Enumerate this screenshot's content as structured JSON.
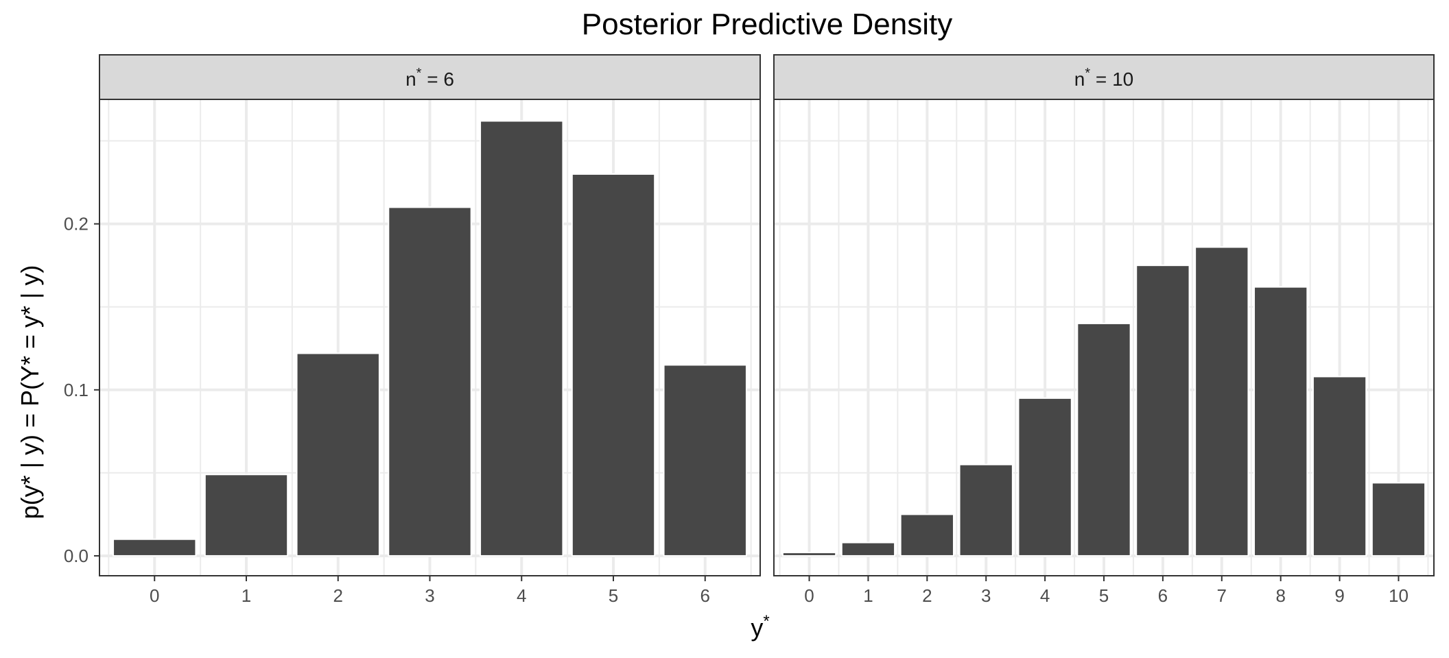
{
  "chart_data": {
    "type": "bar",
    "title": "Posterior Predictive Density",
    "xlabel": "y",
    "xlabel_sup": "*",
    "ylabel": "p(y* | y) = P(Y* = y* | y)",
    "y_ticks": [
      "0.0",
      "0.1",
      "0.2"
    ],
    "ylim": [
      -0.012,
      0.275
    ],
    "grid": true,
    "colors": {
      "bar": "#474747",
      "strip": "#d9d9d9",
      "grid": "#ebebeb",
      "border": "#333333"
    },
    "panels": [
      {
        "strip_label": "n* = 6",
        "strip_label_parts": {
          "base": "n",
          "sup": "*",
          "rest": " = 6"
        },
        "categories": [
          "0",
          "1",
          "2",
          "3",
          "4",
          "5",
          "6"
        ],
        "values": [
          0.01,
          0.049,
          0.122,
          0.21,
          0.262,
          0.23,
          0.115
        ]
      },
      {
        "strip_label": "n* = 10",
        "strip_label_parts": {
          "base": "n",
          "sup": "*",
          "rest": " = 10"
        },
        "categories": [
          "0",
          "1",
          "2",
          "3",
          "4",
          "5",
          "6",
          "7",
          "8",
          "9",
          "10"
        ],
        "values": [
          0.002,
          0.008,
          0.025,
          0.055,
          0.095,
          0.14,
          0.175,
          0.186,
          0.162,
          0.108,
          0.044
        ]
      }
    ]
  }
}
